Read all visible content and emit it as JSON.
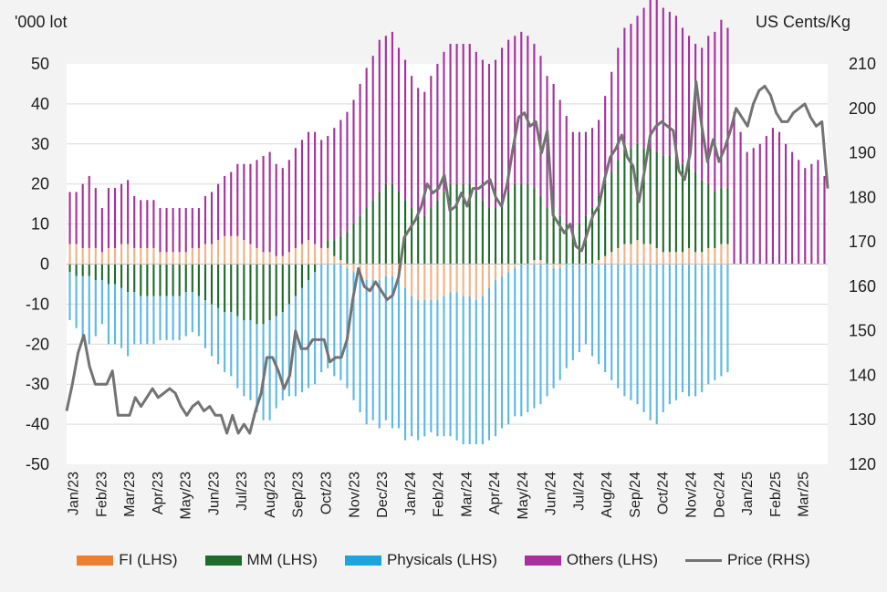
{
  "chart_data": {
    "type": "bar+line",
    "y_left_label": "'000 lot",
    "y_right_label": "US Cents/Kg",
    "ylim_left": [
      -50,
      50
    ],
    "ylim_right": [
      120,
      210
    ],
    "left_ticks": [
      "50",
      "40",
      "30",
      "20",
      "10",
      "0",
      "-10",
      "-20",
      "-30",
      "-40",
      "-50"
    ],
    "right_ticks": [
      "210",
      "200",
      "190",
      "180",
      "170",
      "160",
      "150",
      "140",
      "130",
      "120"
    ],
    "x_tick_labels": [
      "Jan/23",
      "Feb/23",
      "Mar/23",
      "Apr/23",
      "May/23",
      "Jun/23",
      "Jul/23",
      "Aug/23",
      "Sep/23",
      "Oct/23",
      "Nov/23",
      "Dec/23",
      "Jan/24",
      "Feb/24",
      "Mar/24",
      "Apr/24",
      "May/24",
      "Jun/24",
      "Jul/24",
      "Aug/24",
      "Sep/24",
      "Oct/24",
      "Nov/24",
      "Dec/24",
      "Jan/25",
      "Feb/25",
      "Mar/25"
    ],
    "grid": true,
    "legend_position": "bottom",
    "colors": {
      "FI": "#f4b183",
      "MM": "#1e6b2b",
      "Physicals": "#5bb8e6",
      "Others": "#a7309d",
      "Price": "#737373",
      "gridline": "#d9d9d9"
    },
    "series": [
      {
        "name": "FI (LHS)",
        "key": "FI",
        "axis": "left",
        "values": [
          5,
          5,
          4,
          4,
          4,
          3,
          4,
          4,
          5,
          5,
          4,
          4,
          4,
          4,
          3,
          3,
          3,
          3,
          3,
          4,
          4,
          5,
          5,
          6,
          7,
          7,
          7,
          6,
          5,
          4,
          3,
          3,
          2,
          2,
          3,
          4,
          5,
          6,
          5,
          4,
          4,
          2,
          1,
          -1,
          -2,
          -3,
          -4,
          -4,
          -4,
          -3,
          -3,
          -4,
          -6,
          -8,
          -9,
          -9,
          -9,
          -9,
          -8,
          -7,
          -7,
          -8,
          -8,
          -9,
          -8,
          -6,
          -4,
          -3,
          -2,
          -1,
          0,
          0,
          1,
          1,
          0,
          -1,
          -1,
          0,
          0,
          0,
          0,
          0,
          1,
          2,
          3,
          4,
          5,
          5,
          6,
          5,
          5,
          4,
          3,
          3,
          3,
          3,
          4,
          3,
          3,
          4,
          4,
          5,
          5
        ]
      },
      {
        "name": "MM (LHS)",
        "key": "MM",
        "axis": "left",
        "values": [
          -2,
          -3,
          -3,
          -3,
          -4,
          -4,
          -5,
          -5,
          -6,
          -7,
          -7,
          -8,
          -8,
          -8,
          -8,
          -8,
          -8,
          -8,
          -7,
          -7,
          -8,
          -9,
          -10,
          -11,
          -12,
          -12,
          -13,
          -14,
          -14,
          -15,
          -15,
          -14,
          -13,
          -12,
          -10,
          -8,
          -6,
          -4,
          -2,
          0,
          2,
          4,
          6,
          8,
          10,
          12,
          14,
          16,
          18,
          20,
          20,
          18,
          16,
          14,
          12,
          12,
          14,
          16,
          18,
          20,
          20,
          20,
          20,
          18,
          16,
          14,
          14,
          16,
          18,
          20,
          20,
          20,
          18,
          16,
          14,
          14,
          12,
          10,
          8,
          10,
          12,
          14,
          16,
          18,
          20,
          22,
          24,
          24,
          24,
          24,
          24,
          24,
          24,
          24,
          24,
          22,
          20,
          20,
          18,
          16,
          14,
          14,
          14
        ]
      },
      {
        "name": "Physicals (LHS)",
        "key": "Physicals",
        "axis": "left",
        "values": [
          -12,
          -13,
          -16,
          -17,
          -14,
          -11,
          -15,
          -15,
          -15,
          -16,
          -13,
          -12,
          -12,
          -12,
          -11,
          -11,
          -11,
          -11,
          -11,
          -10,
          -10,
          -12,
          -13,
          -14,
          -15,
          -16,
          -18,
          -19,
          -20,
          -22,
          -24,
          -25,
          -23,
          -22,
          -23,
          -25,
          -26,
          -27,
          -28,
          -27,
          -26,
          -28,
          -29,
          -30,
          -32,
          -34,
          -36,
          -35,
          -37,
          -36,
          -38,
          -37,
          -38,
          -35,
          -35,
          -34,
          -33,
          -34,
          -35,
          -36,
          -37,
          -37,
          -37,
          -36,
          -37,
          -38,
          -39,
          -38,
          -38,
          -37,
          -38,
          -37,
          -36,
          -35,
          -33,
          -30,
          -28,
          -26,
          -24,
          -22,
          -20,
          -23,
          -25,
          -27,
          -29,
          -31,
          -33,
          -34,
          -35,
          -37,
          -39,
          -40,
          -37,
          -35,
          -34,
          -32,
          -33,
          -33,
          -32,
          -30,
          -29,
          -28,
          -27
        ]
      },
      {
        "name": "Others (LHS)",
        "key": "Others",
        "axis": "left",
        "values": [
          13,
          13,
          16,
          18,
          15,
          11,
          15,
          15,
          15,
          16,
          13,
          12,
          12,
          12,
          11,
          11,
          11,
          11,
          11,
          10,
          10,
          12,
          13,
          14,
          15,
          16,
          18,
          19,
          20,
          22,
          24,
          25,
          23,
          22,
          23,
          25,
          26,
          27,
          28,
          27,
          26,
          28,
          29,
          30,
          31,
          33,
          35,
          36,
          38,
          37,
          38,
          36,
          35,
          33,
          32,
          31,
          33,
          34,
          35,
          35,
          35,
          35,
          35,
          35,
          35,
          36,
          37,
          38,
          38,
          37,
          38,
          37,
          36,
          35,
          33,
          31,
          29,
          27,
          25,
          23,
          21,
          20,
          19,
          22,
          25,
          28,
          30,
          31,
          32,
          35,
          38,
          39,
          37,
          36,
          35,
          34,
          33,
          32,
          33,
          37,
          40,
          42,
          40,
          38,
          33,
          28,
          29,
          30,
          32,
          34,
          33,
          30,
          28,
          26,
          24,
          25,
          26,
          22
        ]
      },
      {
        "name": "Price (RHS)",
        "key": "Price",
        "axis": "right",
        "values": [
          132,
          138,
          145,
          149,
          142,
          138,
          138,
          138,
          141,
          131,
          131,
          131,
          135,
          133,
          135,
          137,
          135,
          136,
          137,
          136,
          133,
          131,
          133,
          134,
          132,
          133,
          131,
          131,
          127,
          131,
          127,
          129,
          127,
          132,
          136,
          144,
          144,
          141,
          137,
          140,
          150,
          146,
          146,
          148,
          148,
          148,
          143,
          144,
          144,
          148,
          157,
          164,
          160,
          159,
          161,
          159,
          157,
          158,
          162,
          171,
          173,
          175,
          178,
          183,
          181,
          182,
          185,
          177,
          178,
          181,
          178,
          182,
          182,
          183,
          184,
          180,
          178,
          183,
          191,
          198,
          199,
          196,
          197,
          190,
          195,
          176,
          174,
          172,
          174,
          169,
          168,
          172,
          176,
          178,
          184,
          189,
          191,
          194,
          189,
          187,
          179,
          186,
          194,
          196,
          197,
          196,
          195,
          186,
          184,
          190,
          206,
          196,
          188,
          193,
          188,
          191,
          195,
          200,
          198,
          196,
          201,
          204,
          205,
          203,
          199,
          197,
          197,
          199,
          200,
          201,
          198,
          196,
          197,
          182
        ]
      }
    ]
  }
}
